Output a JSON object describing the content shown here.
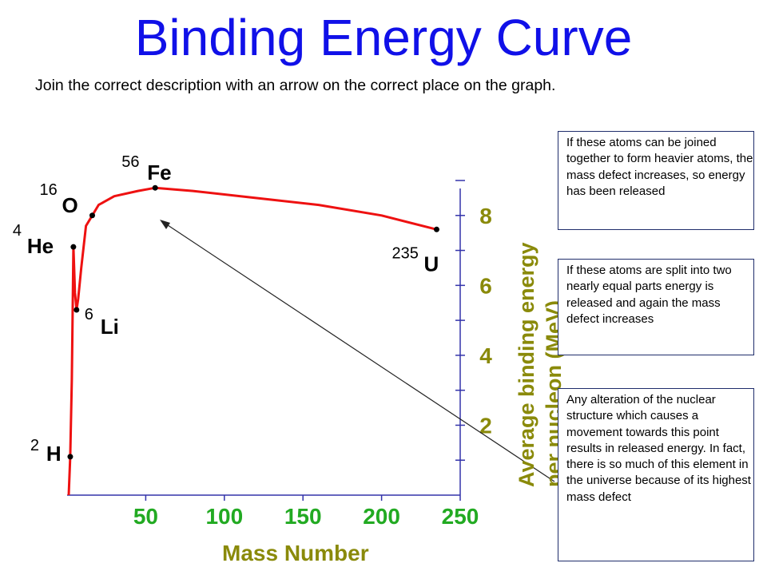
{
  "title": "Binding Energy Curve",
  "instruction": "Join the correct description with an arrow on the correct place on the graph.",
  "descriptions": [
    "If these atoms can be joined together to form heavier atoms, the mass defect increases, so energy has been released",
    "If these atoms are split into two nearly equal parts energy is released and again the mass defect increases",
    "Any alteration of the nuclear structure which causes a movement towards this point results in released energy. In fact, there is so much of this element in the universe because of its highest mass defect"
  ],
  "colors": {
    "title": "#1010e8",
    "curve": "#ee1111",
    "axis_text": "#8a8a0a",
    "x_ticks": "#22aa22",
    "axis_line": "#3333aa"
  },
  "chart_data": {
    "type": "line",
    "xlabel": "Mass Number",
    "ylabel": "Average binding energy per nucleon (MeV)",
    "x_ticks": [
      "50",
      "100",
      "150",
      "200",
      "250"
    ],
    "y_ticks": [
      "2",
      "4",
      "6",
      "8"
    ],
    "xlim": [
      0,
      250
    ],
    "ylim": [
      0,
      9
    ],
    "series": [
      {
        "x": [
          1,
          2,
          3,
          4,
          5,
          6,
          7,
          9,
          12,
          16,
          20,
          30,
          45,
          56,
          80,
          120,
          160,
          200,
          235
        ],
        "y": [
          0,
          1.1,
          3.3,
          7.1,
          5.8,
          5.3,
          5.6,
          6.5,
          7.7,
          8.0,
          8.3,
          8.55,
          8.7,
          8.79,
          8.7,
          8.5,
          8.3,
          8.0,
          7.6
        ]
      }
    ],
    "labeled_points": [
      {
        "x": 2,
        "y": 1.1,
        "element": "H",
        "mass": "2"
      },
      {
        "x": 4,
        "y": 7.1,
        "element": "He",
        "mass": "4"
      },
      {
        "x": 6,
        "y": 5.3,
        "element": "Li",
        "mass": "6"
      },
      {
        "x": 16,
        "y": 8.0,
        "element": "O",
        "mass": "16"
      },
      {
        "x": 56,
        "y": 8.79,
        "element": "Fe",
        "mass": "56"
      },
      {
        "x": 235,
        "y": 7.6,
        "element": "U",
        "mass": "235"
      }
    ],
    "grid": false
  }
}
